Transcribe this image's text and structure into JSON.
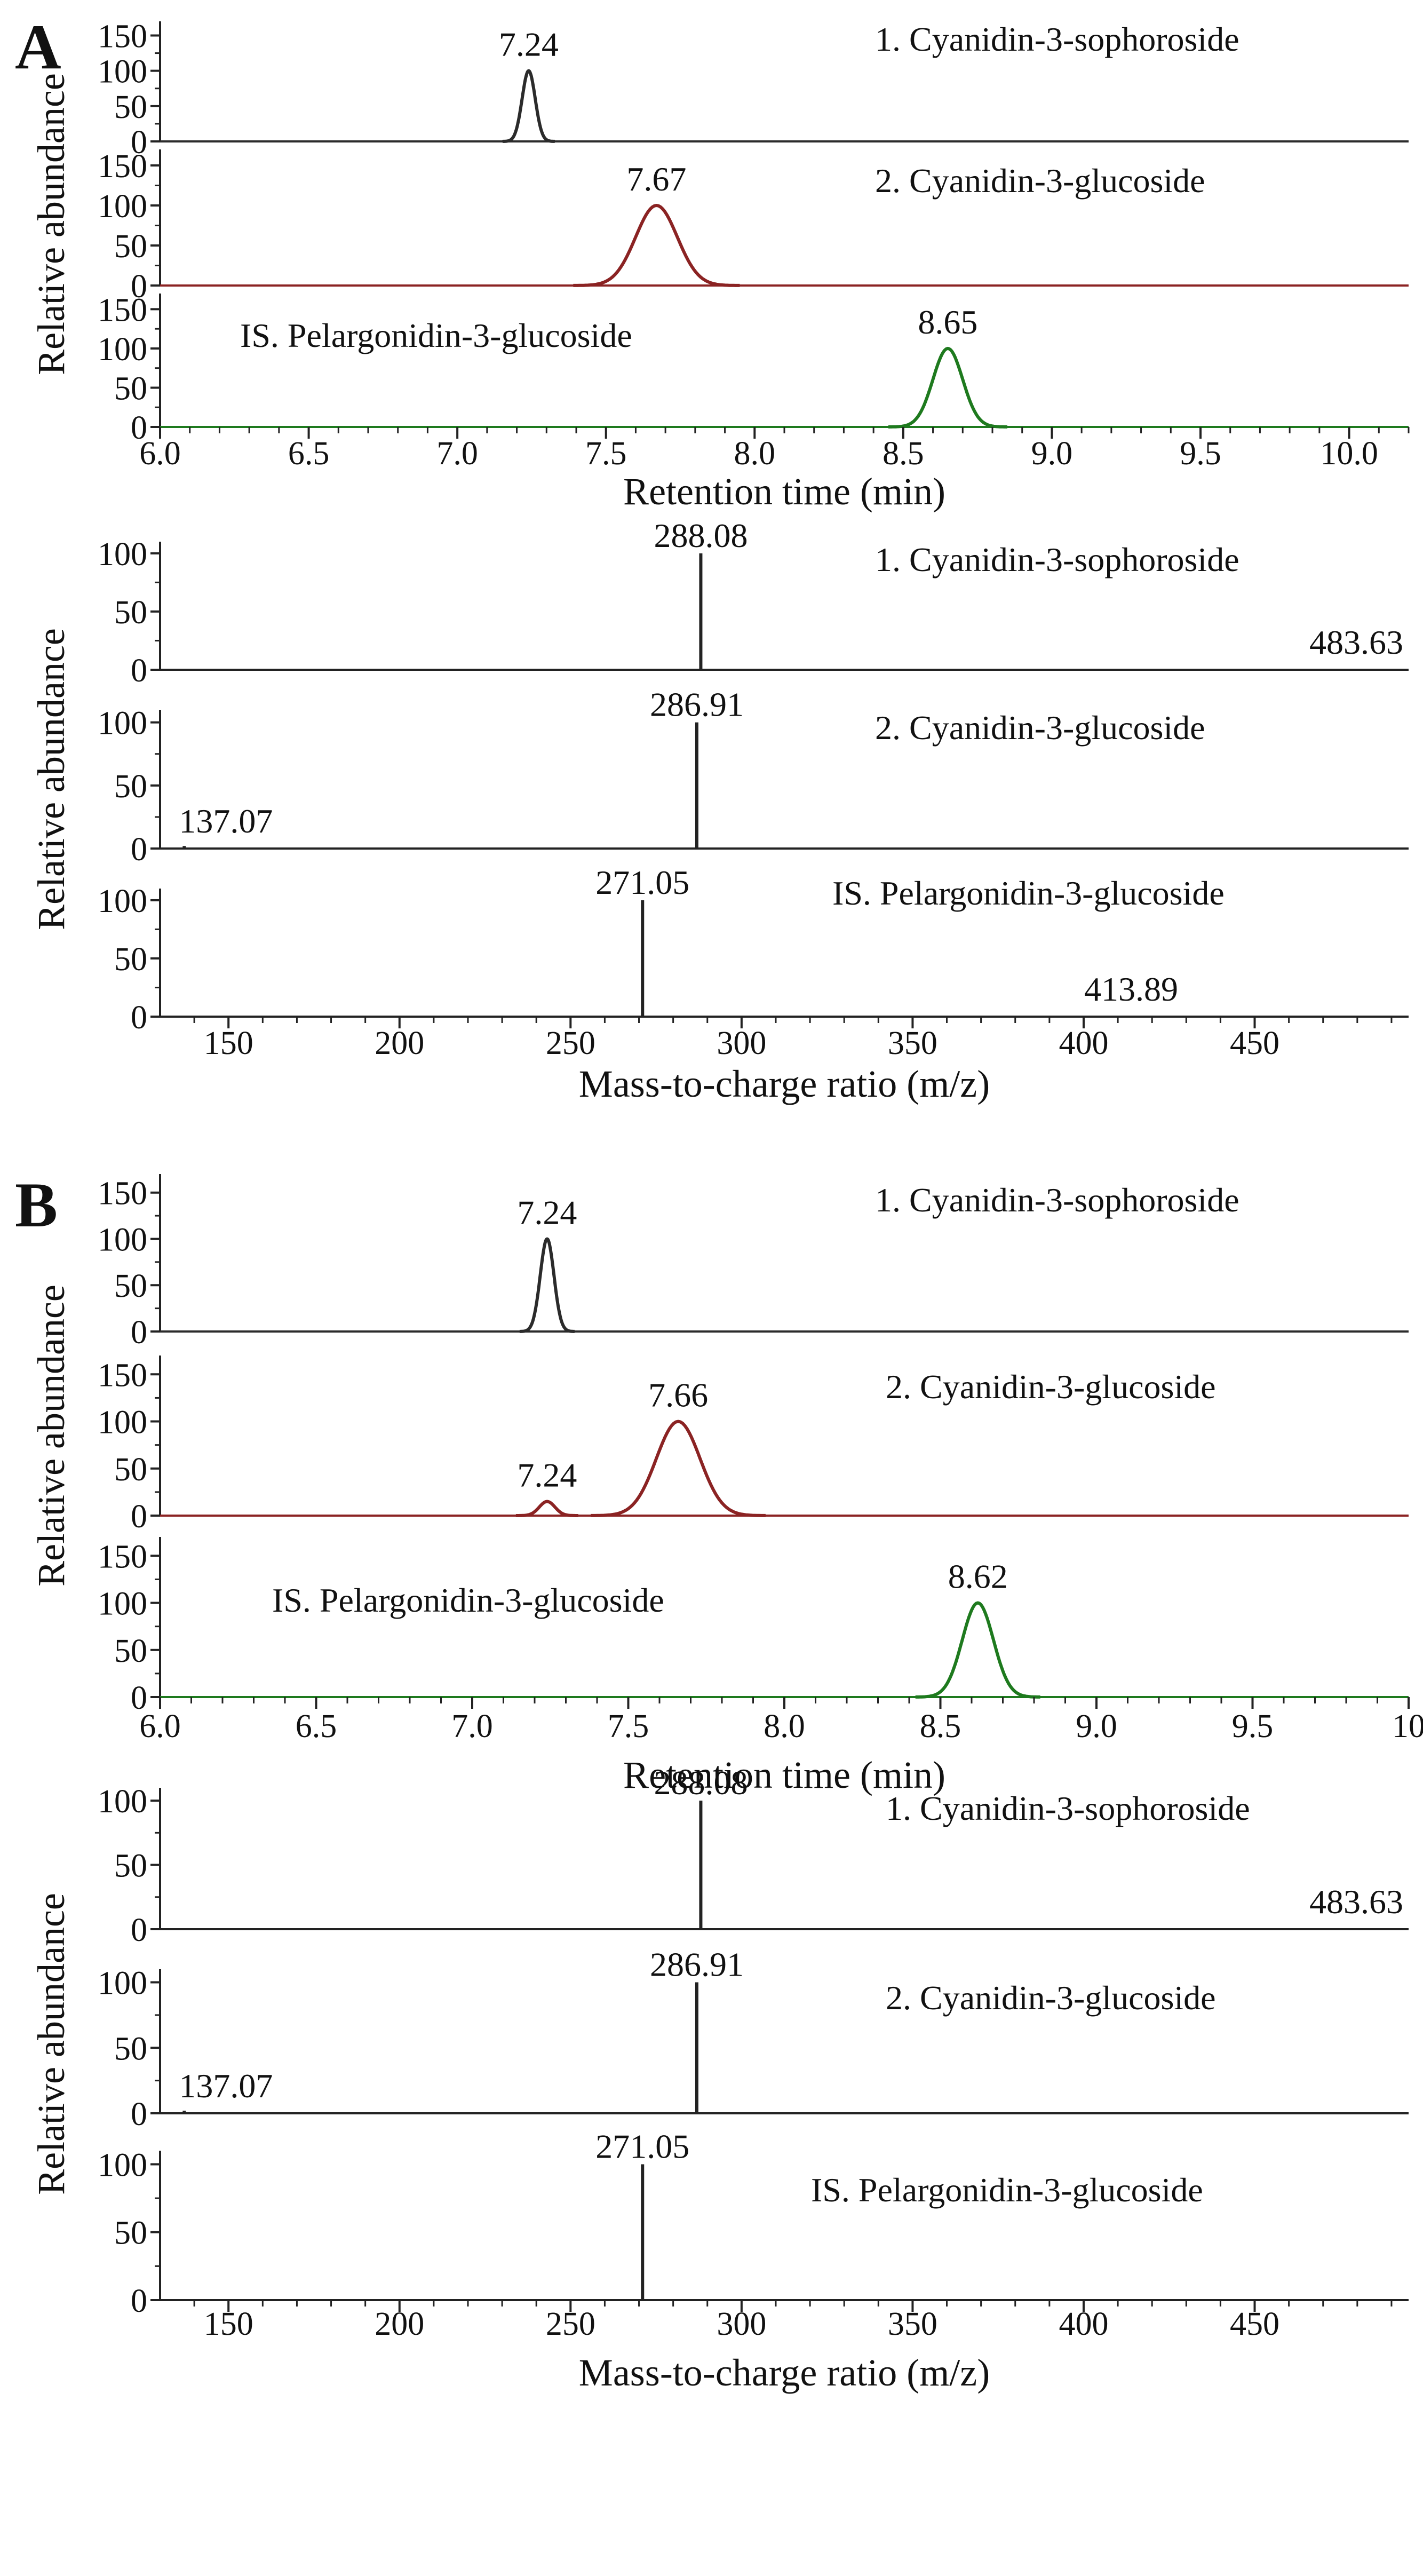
{
  "chart_data": [
    {
      "panel": "A",
      "type": "line",
      "subtype": "chromatogram",
      "xlabel": "Retention time (min)",
      "ylabel": "Relative abundance",
      "xlim": [
        6.0,
        10.2
      ],
      "xticks": [
        6.0,
        6.5,
        7.0,
        7.5,
        8.0,
        8.5,
        9.0,
        9.5,
        10.0
      ],
      "xtick_labels": [
        "6.0",
        "6.5",
        "7.0",
        "7.5",
        "8.0",
        "8.5",
        "9.0",
        "9.5",
        "10.0"
      ],
      "ylim": [
        0,
        170
      ],
      "yticks": [
        0,
        50,
        100,
        150
      ],
      "series": [
        {
          "name": "1. Cyanidin-3-sophoroside",
          "color": "#2b2b2b",
          "peaks": [
            {
              "x": 7.24,
              "y": 100,
              "width": 0.022,
              "label": "7.24"
            }
          ]
        },
        {
          "name": "2. Cyanidin-3-glucoside",
          "color": "#8b2323",
          "peaks": [
            {
              "x": 7.67,
              "y": 100,
              "width": 0.07,
              "label": "7.67"
            }
          ]
        },
        {
          "name": "IS. Pelargonidin-3-glucoside",
          "color": "#1e7a1e",
          "peaks": [
            {
              "x": 8.65,
              "y": 100,
              "width": 0.05,
              "label": "8.65"
            }
          ]
        }
      ]
    },
    {
      "panel": "A",
      "type": "bar",
      "subtype": "mass spectrum",
      "xlabel": "Mass-to-charge ratio (m/z)",
      "ylabel": "Relative abundance",
      "xlim": [
        130,
        495
      ],
      "xticks": [
        150,
        200,
        250,
        300,
        350,
        400,
        450
      ],
      "ylim": [
        0,
        110
      ],
      "yticks": [
        0,
        50,
        100
      ],
      "series": [
        {
          "name": "1. Cyanidin-3-sophoroside",
          "peaks": [
            {
              "x": 288.08,
              "y": 100,
              "label": "288.08"
            },
            {
              "x": 483.63,
              "y": 0,
              "label": "483.63"
            }
          ]
        },
        {
          "name": "2. Cyanidin-3-glucoside",
          "peaks": [
            {
              "x": 286.91,
              "y": 100,
              "label": "286.91"
            },
            {
              "x": 137.07,
              "y": 2,
              "label": "137.07"
            }
          ]
        },
        {
          "name": "IS. Pelargonidin-3-glucoside",
          "peaks": [
            {
              "x": 271.05,
              "y": 100,
              "label": "271.05"
            },
            {
              "x": 413.89,
              "y": 0,
              "label": "413.89"
            }
          ]
        }
      ]
    },
    {
      "panel": "B",
      "type": "line",
      "subtype": "chromatogram",
      "xlabel": "Retention time (min)",
      "ylabel": "Relative abundance",
      "xlim": [
        6.0,
        10.0
      ],
      "xticks": [
        6.0,
        6.5,
        7.0,
        7.5,
        8.0,
        8.5,
        9.0,
        9.5,
        10.0
      ],
      "xtick_labels": [
        "6.0",
        "6.5",
        "7.0",
        "7.5",
        "8.0",
        "8.5",
        "9.0",
        "9.5",
        "10"
      ],
      "ylim": [
        0,
        170
      ],
      "yticks": [
        0,
        50,
        100,
        150
      ],
      "series": [
        {
          "name": "1. Cyanidin-3-sophoroside",
          "color": "#2b2b2b",
          "peaks": [
            {
              "x": 7.24,
              "y": 100,
              "width": 0.022,
              "label": "7.24"
            }
          ]
        },
        {
          "name": "2. Cyanidin-3-glucoside",
          "color": "#8b2323",
          "peaks": [
            {
              "x": 7.24,
              "y": 15,
              "width": 0.025,
              "label": "7.24"
            },
            {
              "x": 7.66,
              "y": 100,
              "width": 0.07,
              "label": "7.66"
            }
          ]
        },
        {
          "name": "IS. Pelargonidin-3-glucoside",
          "color": "#1e7a1e",
          "peaks": [
            {
              "x": 8.62,
              "y": 100,
              "width": 0.05,
              "label": "8.62"
            }
          ]
        }
      ]
    },
    {
      "panel": "B",
      "type": "bar",
      "subtype": "mass spectrum",
      "xlabel": "Mass-to-charge ratio (m/z)",
      "ylabel": "Relative abundance",
      "xlim": [
        130,
        495
      ],
      "xticks": [
        150,
        200,
        250,
        300,
        350,
        400,
        450
      ],
      "ylim": [
        0,
        110
      ],
      "yticks": [
        0,
        50,
        100
      ],
      "series": [
        {
          "name": "1. Cyanidin-3-sophoroside",
          "peaks": [
            {
              "x": 288.08,
              "y": 100,
              "label": "288.08"
            },
            {
              "x": 483.63,
              "y": 0,
              "label": "483.63"
            }
          ]
        },
        {
          "name": "2. Cyanidin-3-glucoside",
          "peaks": [
            {
              "x": 286.91,
              "y": 100,
              "label": "286.91"
            },
            {
              "x": 137.07,
              "y": 2,
              "label": "137.07"
            }
          ]
        },
        {
          "name": "IS. Pelargonidin-3-glucoside",
          "peaks": [
            {
              "x": 271.05,
              "y": 100,
              "label": "271.05"
            }
          ]
        }
      ]
    }
  ],
  "panel_labels": {
    "a": "A",
    "b": "B"
  }
}
